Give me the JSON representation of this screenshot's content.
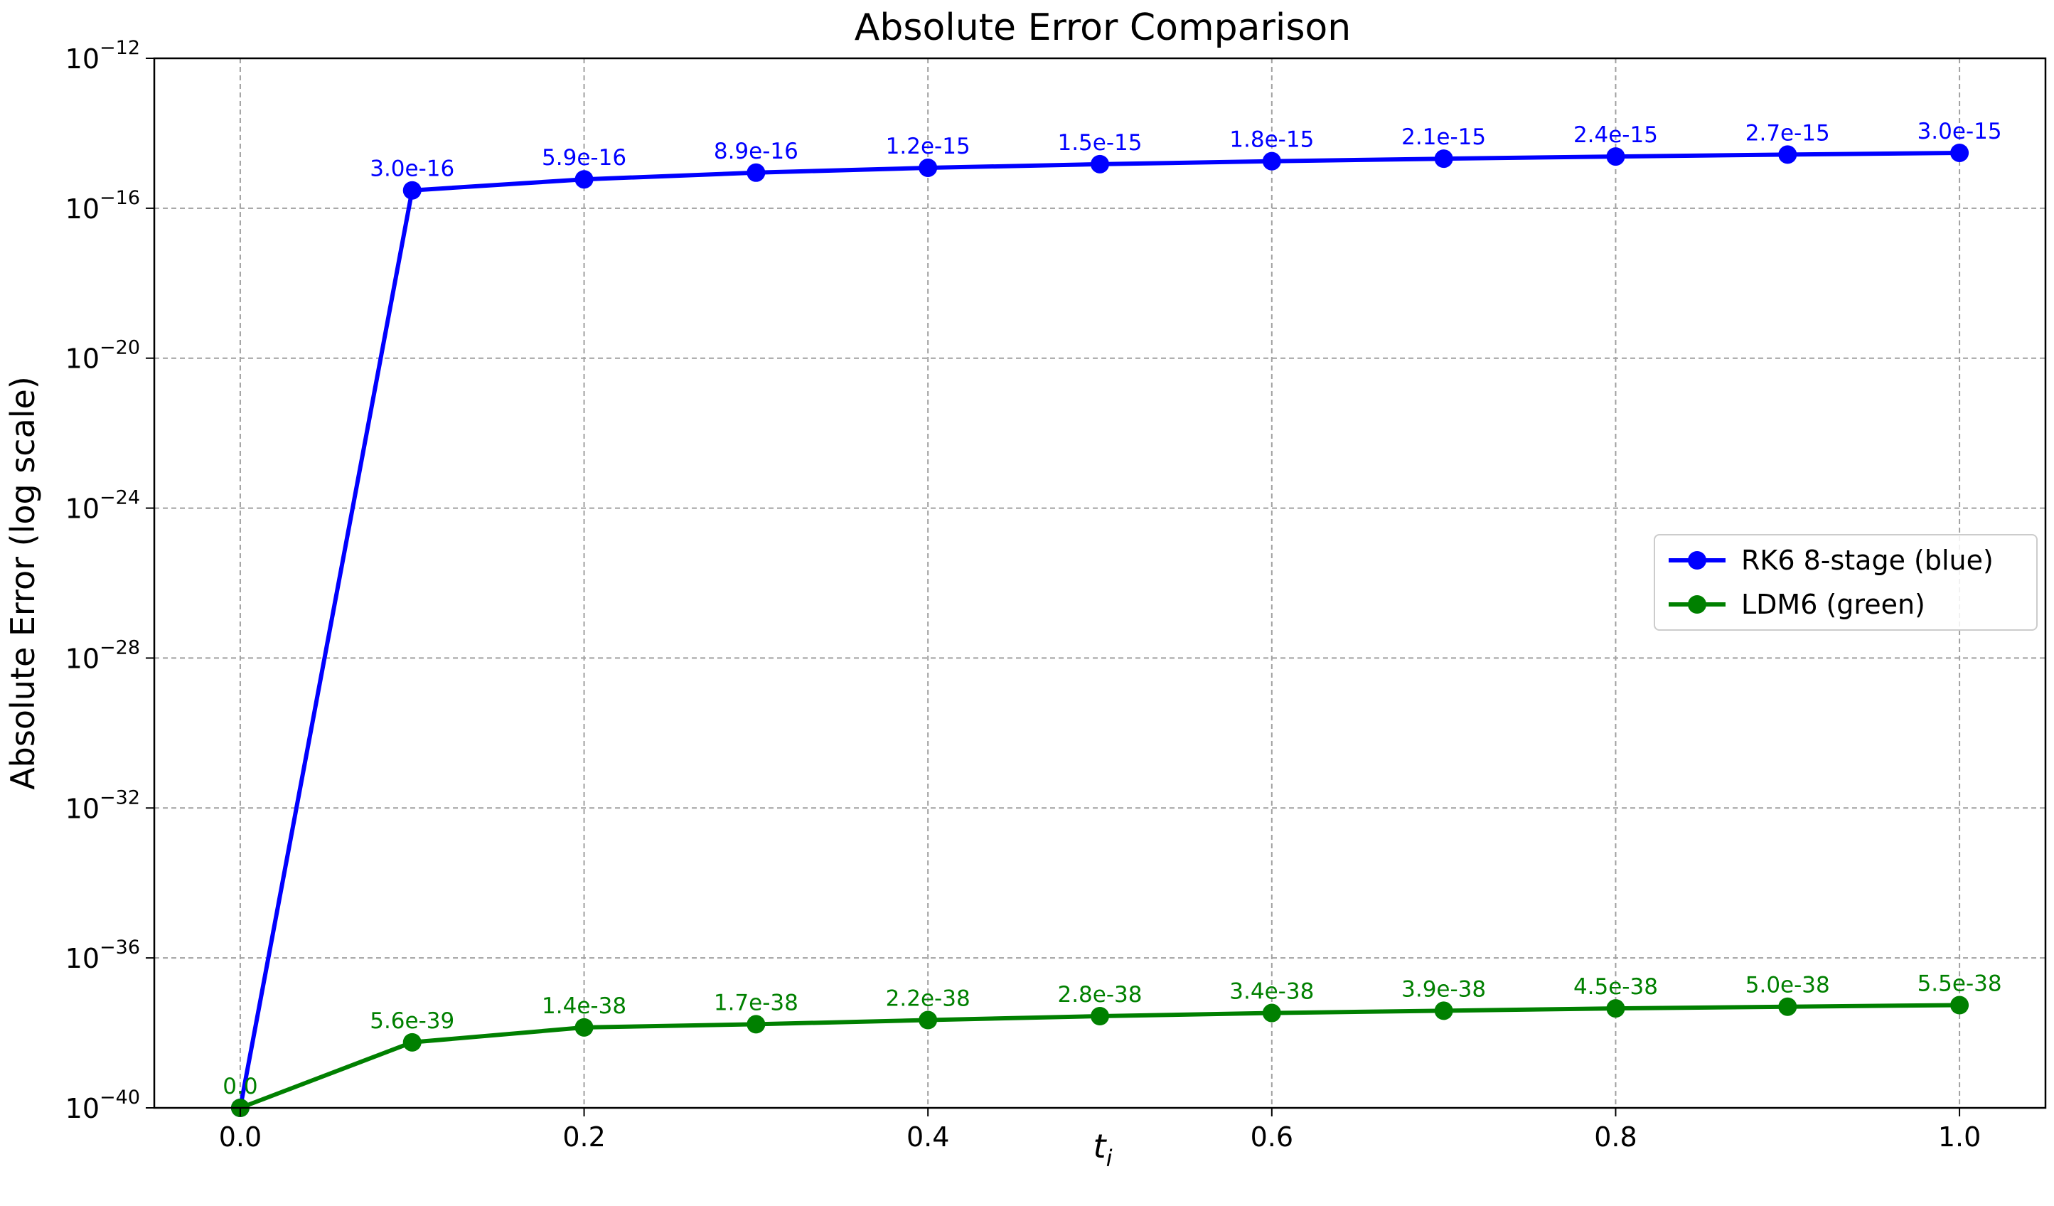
{
  "chart_data": {
    "type": "line",
    "title": "Absolute Error Comparison",
    "xlabel": "t",
    "xlabel_sub": "i",
    "ylabel": "Absolute Error (log scale)",
    "yscale": "log",
    "xlim": [
      -0.05,
      1.05
    ],
    "ylim": [
      1e-40,
      1e-12
    ],
    "grid": true,
    "legend_position": "center-right",
    "x_ticks": [
      {
        "value": 0.0,
        "label": "0.0"
      },
      {
        "value": 0.2,
        "label": "0.2"
      },
      {
        "value": 0.4,
        "label": "0.4"
      },
      {
        "value": 0.6,
        "label": "0.6"
      },
      {
        "value": 0.8,
        "label": "0.8"
      },
      {
        "value": 1.0,
        "label": "1.0"
      }
    ],
    "y_ticks": [
      {
        "exp": -12,
        "base": "10",
        "exponent": "−12"
      },
      {
        "exp": -16,
        "base": "10",
        "exponent": "−16"
      },
      {
        "exp": -20,
        "base": "10",
        "exponent": "−20"
      },
      {
        "exp": -24,
        "base": "10",
        "exponent": "−24"
      },
      {
        "exp": -28,
        "base": "10",
        "exponent": "−28"
      },
      {
        "exp": -32,
        "base": "10",
        "exponent": "−32"
      },
      {
        "exp": -36,
        "base": "10",
        "exponent": "−36"
      },
      {
        "exp": -40,
        "base": "10",
        "exponent": "−40"
      }
    ],
    "x": [
      0.0,
      0.1,
      0.2,
      0.3,
      0.4,
      0.5,
      0.6,
      0.7,
      0.8,
      0.9,
      1.0
    ],
    "series": [
      {
        "name": "RK6 8-stage (blue)",
        "color": "#0000ff",
        "values": [
          1e-40,
          3e-16,
          5.9e-16,
          8.9e-16,
          1.2e-15,
          1.5e-15,
          1.8e-15,
          2.1e-15,
          2.4e-15,
          2.7e-15,
          3e-15
        ],
        "labels": [
          "",
          "3.0e-16",
          "5.9e-16",
          "8.9e-16",
          "1.2e-15",
          "1.5e-15",
          "1.8e-15",
          "2.1e-15",
          "2.4e-15",
          "2.7e-15",
          "3.0e-15"
        ]
      },
      {
        "name": "LDM6 (green)",
        "color": "#008000",
        "values": [
          1e-40,
          5.6e-39,
          1.4e-38,
          1.7e-38,
          2.2e-38,
          2.8e-38,
          3.4e-38,
          3.9e-38,
          4.5e-38,
          5e-38,
          5.5e-38
        ],
        "labels": [
          "0.0",
          "5.6e-39",
          "1.4e-38",
          "1.7e-38",
          "2.2e-38",
          "2.8e-38",
          "3.4e-38",
          "3.9e-38",
          "4.5e-38",
          "5.0e-38",
          "5.5e-38"
        ]
      }
    ]
  }
}
